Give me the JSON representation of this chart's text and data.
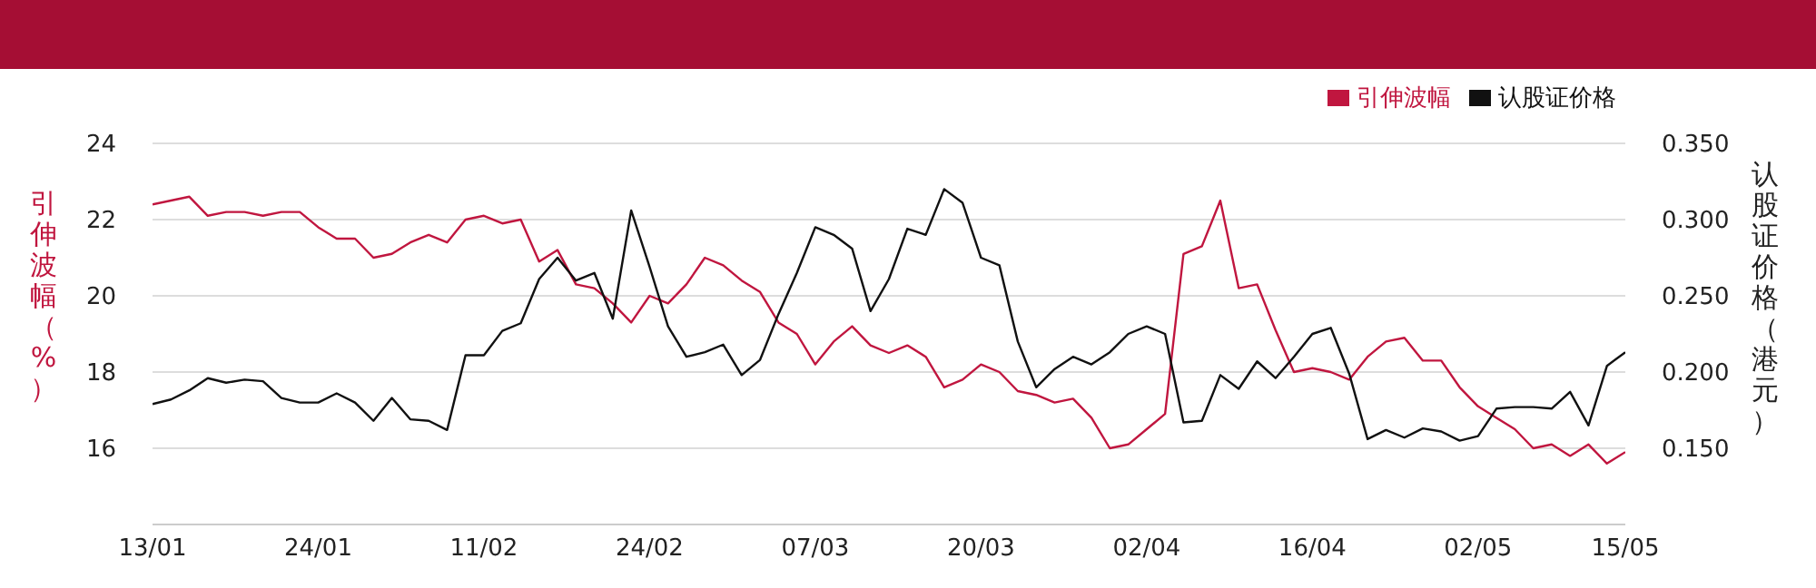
{
  "chart_data": {
    "type": "line",
    "ylabel": "引伸波幅（%）",
    "y2label": "认股证价格（港元）",
    "categories": [
      "13/01",
      null,
      null,
      null,
      null,
      null,
      null,
      null,
      null,
      "24/01",
      null,
      null,
      null,
      null,
      null,
      null,
      null,
      null,
      "11/02",
      null,
      null,
      null,
      null,
      null,
      null,
      null,
      null,
      "24/02",
      null,
      null,
      null,
      null,
      null,
      null,
      null,
      null,
      "07/03",
      null,
      null,
      null,
      null,
      null,
      null,
      null,
      null,
      "20/03",
      null,
      null,
      null,
      null,
      null,
      null,
      null,
      null,
      "02/04",
      null,
      null,
      null,
      null,
      null,
      null,
      null,
      null,
      "16/04",
      null,
      null,
      null,
      null,
      null,
      null,
      null,
      null,
      "02/05",
      null,
      null,
      null,
      null,
      null,
      null,
      null,
      "15/05"
    ],
    "series": [
      {
        "name": "引伸波幅",
        "color": "#c0163f",
        "values": [
          22.4,
          22.5,
          22.6,
          22.1,
          22.2,
          22.2,
          22.1,
          22.2,
          22.2,
          21.8,
          21.5,
          21.5,
          21.0,
          21.1,
          21.4,
          21.6,
          21.4,
          22.0,
          22.1,
          21.9,
          22.0,
          20.9,
          21.2,
          20.3,
          20.2,
          19.8,
          19.3,
          20.0,
          19.8,
          20.3,
          21.0,
          20.8,
          20.4,
          20.1,
          19.3,
          19.0,
          18.2,
          18.8,
          19.2,
          18.7,
          18.5,
          18.7,
          18.4,
          17.6,
          17.8,
          18.2,
          18.0,
          17.5,
          17.4,
          17.2,
          17.3,
          16.8,
          16.0,
          16.1,
          16.5,
          16.9,
          21.1,
          21.3,
          22.5,
          20.2,
          20.3,
          19.1,
          18.0,
          18.1,
          18.0,
          17.8,
          18.4,
          18.8,
          18.9,
          18.3,
          18.3,
          17.6,
          17.1,
          16.8,
          16.5,
          16.0,
          16.1,
          15.8,
          16.1,
          15.6,
          15.9
        ]
      },
      {
        "name": "认股证价格",
        "color": "#111111",
        "axis": "y2",
        "values": [
          0.179,
          0.182,
          0.188,
          0.196,
          0.193,
          0.195,
          0.194,
          0.183,
          0.18,
          0.18,
          0.186,
          0.18,
          0.168,
          0.183,
          0.169,
          0.168,
          0.162,
          0.211,
          0.211,
          0.227,
          0.232,
          0.261,
          0.275,
          0.26,
          0.265,
          0.235,
          0.306,
          0.269,
          0.23,
          0.21,
          0.213,
          0.218,
          0.198,
          0.208,
          0.238,
          0.265,
          0.295,
          0.29,
          0.281,
          0.24,
          0.261,
          0.294,
          0.29,
          0.32,
          0.311,
          0.275,
          0.27,
          0.22,
          0.19,
          0.202,
          0.21,
          0.205,
          0.213,
          0.225,
          0.23,
          0.225,
          0.167,
          0.168,
          0.198,
          0.189,
          0.207,
          0.196,
          0.21,
          0.225,
          0.229,
          0.199,
          0.156,
          0.162,
          0.157,
          0.163,
          0.161,
          0.155,
          0.158,
          0.176,
          0.177,
          0.177,
          0.176,
          0.187,
          0.165,
          0.204,
          0.213
        ]
      }
    ],
    "ylim": [
      14,
      24
    ],
    "yticks": [
      16,
      18,
      20,
      22,
      24
    ],
    "y2lim": [
      0.1,
      0.35
    ],
    "y2ticks": [
      {
        "value": 0.15,
        "label": "0.150"
      },
      {
        "value": 0.2,
        "label": "0.200"
      },
      {
        "value": 0.25,
        "label": "0.250"
      },
      {
        "value": 0.3,
        "label": "0.300"
      },
      {
        "value": 0.35,
        "label": "0.350"
      }
    ],
    "grid": "y",
    "legend": "top right",
    "marker": "none",
    "line_style": "solid"
  }
}
